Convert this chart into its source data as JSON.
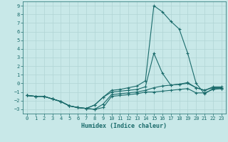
{
  "xlabel": "Humidex (Indice chaleur)",
  "bg_color": "#c8e8e8",
  "grid_color": "#b0d4d4",
  "line_color": "#1a6b6b",
  "xlim": [
    -0.5,
    23.5
  ],
  "ylim": [
    -3.5,
    9.5
  ],
  "xticks": [
    0,
    1,
    2,
    3,
    4,
    5,
    6,
    7,
    8,
    9,
    10,
    11,
    12,
    13,
    14,
    15,
    16,
    17,
    18,
    19,
    20,
    21,
    22,
    23
  ],
  "yticks": [
    -3,
    -2,
    -1,
    0,
    1,
    2,
    3,
    4,
    5,
    6,
    7,
    8,
    9
  ],
  "series": [
    {
      "x": [
        0,
        1,
        2,
        3,
        4,
        5,
        6,
        7,
        8,
        9,
        10,
        11,
        12,
        13,
        14,
        15,
        16,
        17,
        18,
        19,
        20,
        21,
        22,
        23
      ],
      "y": [
        -1.4,
        -1.5,
        -1.5,
        -1.8,
        -2.1,
        -2.6,
        -2.8,
        -2.9,
        -3.0,
        -2.8,
        -1.5,
        -1.4,
        -1.3,
        -1.2,
        -1.0,
        -1.0,
        -0.9,
        -0.8,
        -0.7,
        -0.6,
        -1.1,
        -1.1,
        -0.7,
        -0.6
      ]
    },
    {
      "x": [
        0,
        1,
        2,
        3,
        4,
        5,
        6,
        7,
        8,
        9,
        10,
        11,
        12,
        13,
        14,
        15,
        16,
        17,
        18,
        19,
        20,
        21,
        22,
        23
      ],
      "y": [
        -1.4,
        -1.5,
        -1.5,
        -1.8,
        -2.1,
        -2.6,
        -2.8,
        -2.9,
        -3.0,
        -2.4,
        -1.3,
        -1.2,
        -1.1,
        -1.0,
        -0.8,
        -0.5,
        -0.3,
        -0.2,
        -0.1,
        0.0,
        -0.5,
        -0.8,
        -0.5,
        -0.5
      ]
    },
    {
      "x": [
        0,
        1,
        2,
        3,
        4,
        5,
        6,
        7,
        8,
        9,
        10,
        11,
        12,
        13,
        14,
        15,
        16,
        17,
        18,
        19,
        20,
        21,
        22,
        23
      ],
      "y": [
        -1.4,
        -1.5,
        -1.5,
        -1.8,
        -2.1,
        -2.6,
        -2.8,
        -2.9,
        -2.5,
        -1.6,
        -1.0,
        -0.9,
        -0.8,
        -0.7,
        -0.4,
        3.5,
        1.2,
        -0.2,
        -0.1,
        0.1,
        -0.5,
        -0.8,
        -0.4,
        -0.4
      ]
    },
    {
      "x": [
        0,
        1,
        2,
        3,
        4,
        5,
        6,
        7,
        8,
        9,
        10,
        11,
        12,
        13,
        14,
        15,
        16,
        17,
        18,
        19,
        20,
        21,
        22,
        23
      ],
      "y": [
        -1.4,
        -1.5,
        -1.5,
        -1.8,
        -2.1,
        -2.6,
        -2.8,
        -2.9,
        -2.5,
        -1.6,
        -0.8,
        -0.7,
        -0.5,
        -0.3,
        0.3,
        9.0,
        8.3,
        7.2,
        6.3,
        3.5,
        0.0,
        -1.2,
        -0.6,
        -0.6
      ]
    }
  ]
}
